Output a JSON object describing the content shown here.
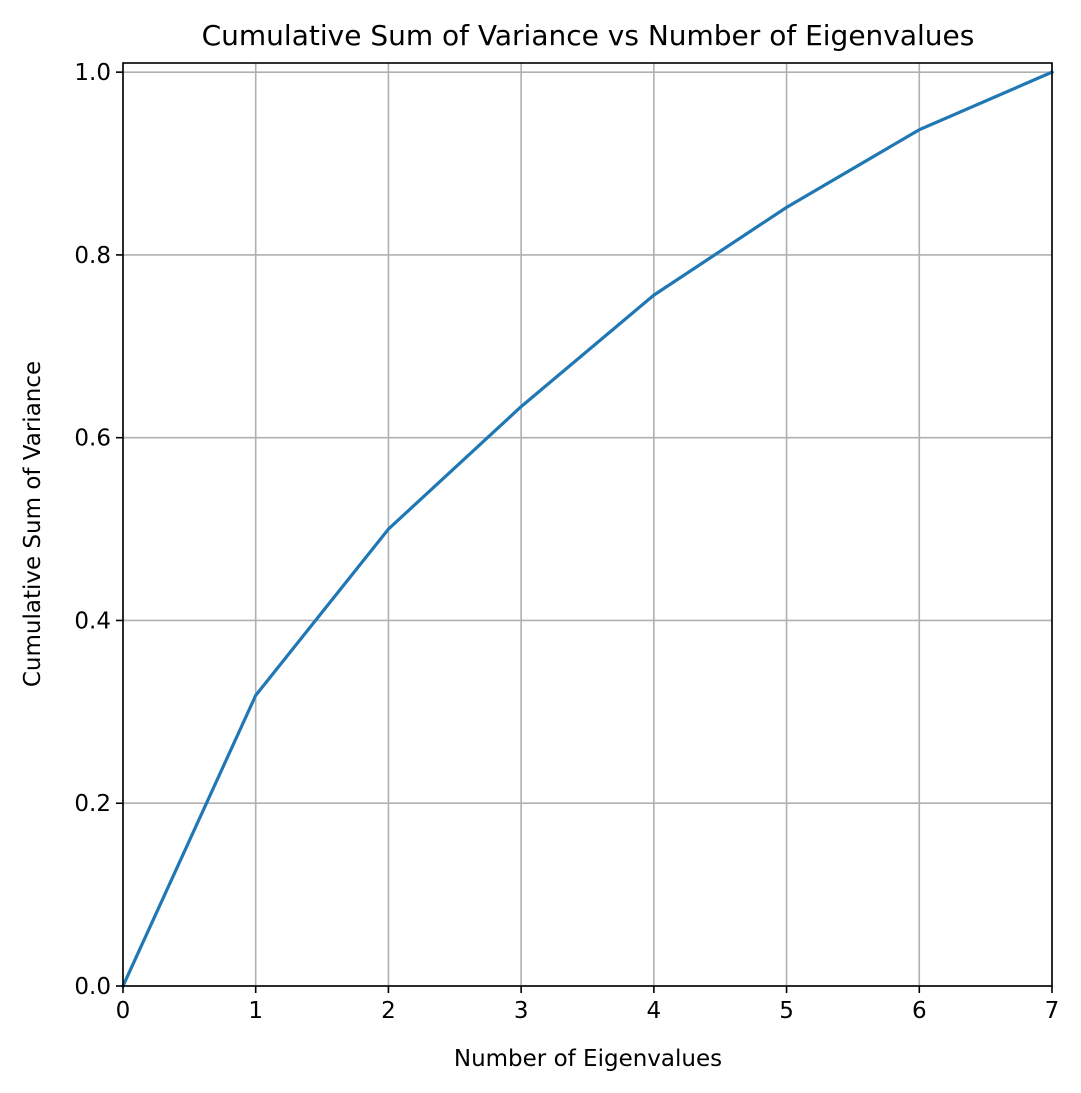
{
  "chart_data": {
    "type": "line",
    "title": "Cumulative Sum of Variance vs Number of Eigenvalues",
    "xlabel": "Number of Eigenvalues",
    "ylabel": "Cumulative Sum of Variance",
    "xlim": [
      0,
      7
    ],
    "ylim": [
      0,
      1.01
    ],
    "grid": true,
    "x_ticks": [
      "0",
      "1",
      "2",
      "3",
      "4",
      "5",
      "6",
      "7"
    ],
    "y_ticks": [
      "0.0",
      "0.2",
      "0.4",
      "0.6",
      "0.8",
      "1.0"
    ],
    "series": [
      {
        "color": "#1f77b4",
        "x": [
          0,
          1,
          2,
          3,
          4,
          5,
          6,
          7
        ],
        "y": [
          0.0,
          0.318,
          0.5,
          0.634,
          0.756,
          0.852,
          0.937,
          1.0
        ]
      }
    ]
  }
}
